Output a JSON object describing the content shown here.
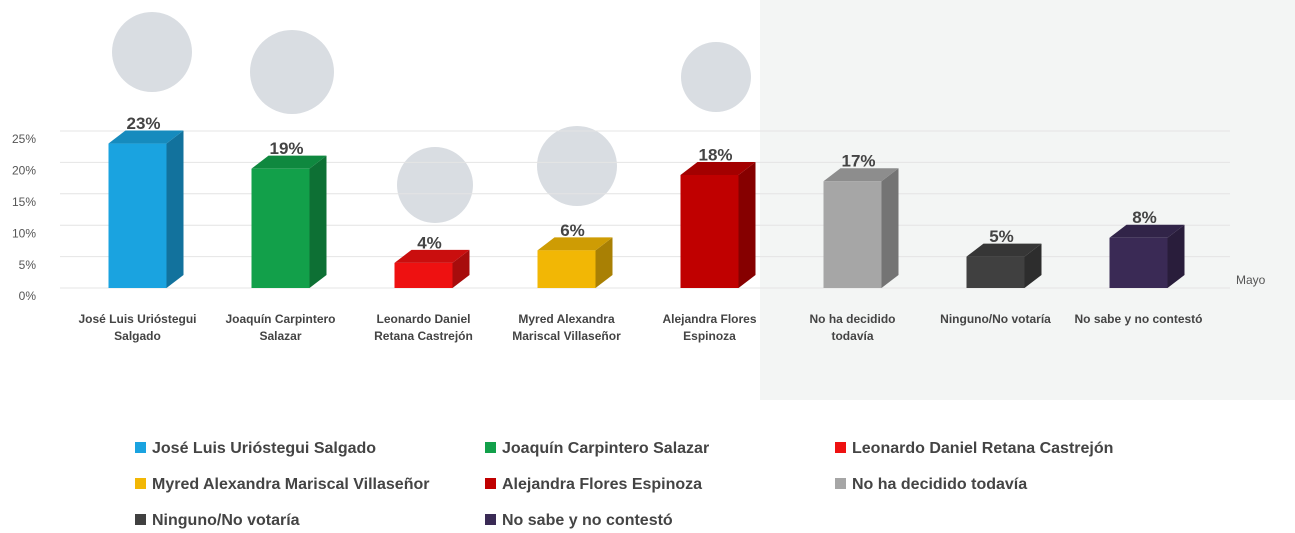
{
  "chart_data": {
    "type": "bar",
    "categories": [
      "José Luis Urióstegui Salgado",
      "Joaquín Carpintero Salazar",
      "Leonardo Daniel Retana Castrejón",
      "Myred Alexandra Mariscal Villaseñor",
      "Alejandra Flores Espinoza",
      "No ha decidido todavía",
      "Ninguno/No votaría",
      "No sabe y no contestó"
    ],
    "values": [
      23,
      19,
      4,
      6,
      18,
      17,
      5,
      8
    ],
    "value_labels": [
      "23%",
      "19%",
      "4%",
      "6%",
      "18%",
      "17%",
      "5%",
      "8%"
    ],
    "colors": [
      "#1aa3e0",
      "#12a04a",
      "#ee1111",
      "#f2b705",
      "#c00000",
      "#a6a6a6",
      "#404040",
      "#3a2a55"
    ],
    "x_label": "Mayo",
    "ylim": [
      0,
      25
    ],
    "yticks": [
      {
        "value": 0,
        "label": "0%"
      },
      {
        "value": 5,
        "label": "5%"
      },
      {
        "value": 10,
        "label": "10%"
      },
      {
        "value": 15,
        "label": "15%"
      },
      {
        "value": 20,
        "label": "20%"
      },
      {
        "value": 25,
        "label": "25%"
      }
    ],
    "grid": true
  }
}
